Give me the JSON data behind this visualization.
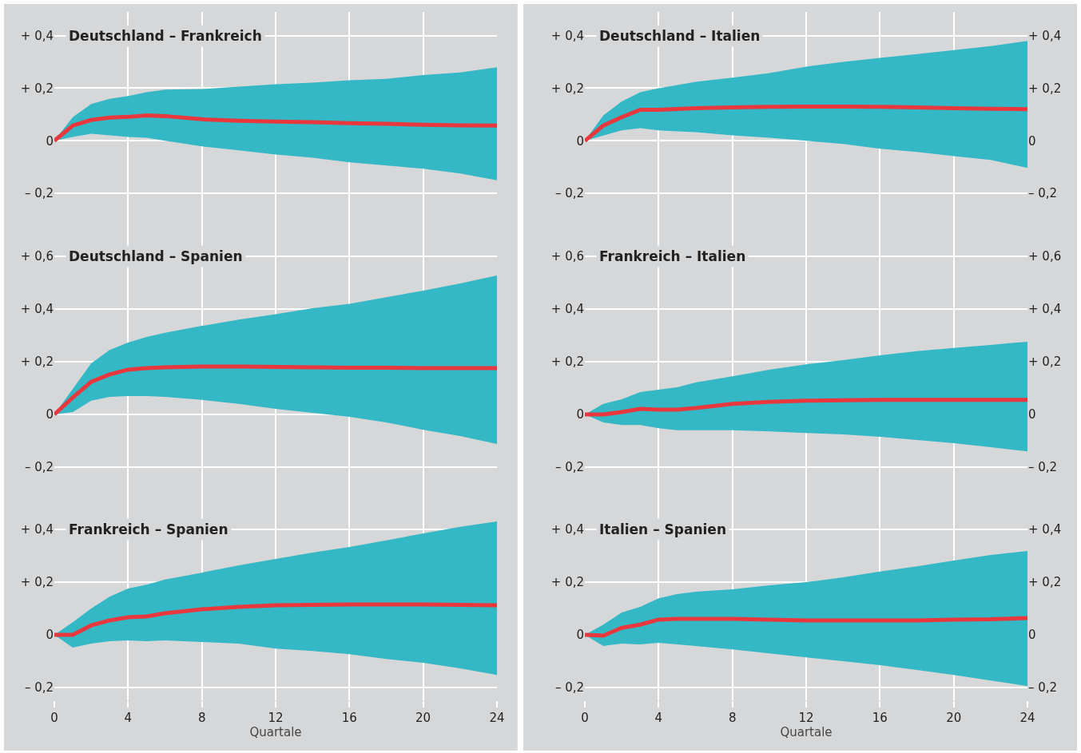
{
  "chart_data": [
    {
      "type": "line",
      "title": "Deutschland – Frankreich",
      "x": [
        0,
        1,
        2,
        3,
        4,
        5,
        6,
        8,
        10,
        12,
        14,
        16,
        18,
        20,
        22,
        24
      ],
      "xlim": [
        0,
        24
      ],
      "xticks": [
        0,
        4,
        8,
        12,
        16,
        20,
        24
      ],
      "ylim": [
        -0.33,
        0.49
      ],
      "yticks": [
        {
          "value": -0.2,
          "label": "– 0,2"
        },
        {
          "value": 0,
          "label": "0"
        },
        {
          "value": 0.2,
          "label": "+ 0,2"
        },
        {
          "value": 0.4,
          "label": "+ 0,4"
        }
      ],
      "grid": true,
      "tick_labels": "y",
      "series": [
        {
          "color": "#e8383d",
          "values": [
            0,
            0.058,
            0.079,
            0.088,
            0.091,
            0.097,
            0.094,
            0.082,
            0.076,
            0.073,
            0.071,
            0.067,
            0.065,
            0.061,
            0.059,
            0.058
          ],
          "upper": [
            0,
            0.09,
            0.14,
            0.16,
            0.17,
            0.185,
            0.195,
            0.197,
            0.206,
            0.215,
            0.221,
            0.23,
            0.236,
            0.25,
            0.26,
            0.28
          ],
          "lower": [
            0,
            0.015,
            0.027,
            0.021,
            0.015,
            0.012,
            0,
            -0.021,
            -0.036,
            -0.052,
            -0.064,
            -0.082,
            -0.094,
            -0.106,
            -0.124,
            -0.15
          ]
        }
      ]
    },
    {
      "type": "line",
      "title": "Deutschland – Italien",
      "x": [
        0,
        1,
        2,
        3,
        4,
        5,
        6,
        8,
        10,
        12,
        14,
        16,
        18,
        20,
        22,
        24
      ],
      "xlim": [
        0,
        24
      ],
      "xticks": [
        0,
        4,
        8,
        12,
        16,
        20,
        24
      ],
      "ylim": [
        -0.33,
        0.49
      ],
      "yticks": [
        {
          "value": -0.2,
          "label": "– 0,2"
        },
        {
          "value": 0,
          "label": "0"
        },
        {
          "value": 0.2,
          "label": "+ 0,2"
        },
        {
          "value": 0.4,
          "label": "+ 0,4"
        }
      ],
      "y2lim": [
        -0.33,
        0.49
      ],
      "y2ticks": [
        {
          "value": -0.2,
          "label": "– 0,2"
        },
        {
          "value": 0,
          "label": "0"
        },
        {
          "value": 0.2,
          "label": "+ 0,2"
        },
        {
          "value": 0.4,
          "label": "+ 0,4"
        }
      ],
      "grid": true,
      "tick_labels": "y",
      "series": [
        {
          "color": "#e8383d",
          "values": [
            0,
            0.058,
            0.09,
            0.118,
            0.118,
            0.121,
            0.124,
            0.127,
            0.129,
            0.13,
            0.13,
            0.129,
            0.127,
            0.124,
            0.122,
            0.12
          ],
          "upper": [
            0,
            0.097,
            0.15,
            0.185,
            0.2,
            0.212,
            0.224,
            0.24,
            0.258,
            0.282,
            0.3,
            0.315,
            0.33,
            0.345,
            0.36,
            0.38
          ],
          "lower": [
            0,
            0.02,
            0.04,
            0.048,
            0.04,
            0.036,
            0.033,
            0.021,
            0.012,
            0,
            -0.012,
            -0.03,
            -0.042,
            -0.058,
            -0.073,
            -0.103
          ]
        }
      ]
    },
    {
      "type": "line",
      "title": "Deutschland – Spanien",
      "x": [
        0,
        1,
        2,
        3,
        4,
        5,
        6,
        8,
        10,
        12,
        14,
        16,
        18,
        20,
        22,
        24
      ],
      "xlim": [
        0,
        24
      ],
      "xticks": [
        0,
        4,
        8,
        12,
        16,
        20,
        24
      ],
      "ylim": [
        -0.306,
        0.709
      ],
      "yticks": [
        {
          "value": -0.2,
          "label": "– 0,2"
        },
        {
          "value": 0,
          "label": "0"
        },
        {
          "value": 0.2,
          "label": "+ 0,2"
        },
        {
          "value": 0.4,
          "label": "+ 0,4"
        },
        {
          "value": 0.6,
          "label": "+ 0,6"
        }
      ],
      "grid": true,
      "tick_labels": "y",
      "series": [
        {
          "color": "#e8383d",
          "values": [
            0,
            0.064,
            0.124,
            0.152,
            0.17,
            0.176,
            0.179,
            0.182,
            0.182,
            0.18,
            0.179,
            0.177,
            0.177,
            0.176,
            0.176,
            0.176
          ],
          "upper": [
            0,
            0.097,
            0.194,
            0.245,
            0.273,
            0.294,
            0.31,
            0.336,
            0.36,
            0.38,
            0.403,
            0.42,
            0.445,
            0.47,
            0.497,
            0.527
          ],
          "lower": [
            0,
            0.009,
            0.052,
            0.067,
            0.07,
            0.07,
            0.067,
            0.055,
            0.04,
            0.021,
            0.006,
            -0.009,
            -0.03,
            -0.058,
            -0.082,
            -0.112
          ]
        }
      ]
    },
    {
      "type": "line",
      "title": "Frankreich – Italien",
      "x": [
        0,
        1,
        2,
        3,
        4,
        5,
        6,
        8,
        10,
        12,
        14,
        16,
        18,
        20,
        22,
        24
      ],
      "xlim": [
        0,
        24
      ],
      "xticks": [
        0,
        4,
        8,
        12,
        16,
        20,
        24
      ],
      "ylim": [
        -0.306,
        0.709
      ],
      "yticks": [
        {
          "value": -0.2,
          "label": "– 0,2"
        },
        {
          "value": 0,
          "label": "0"
        },
        {
          "value": 0.2,
          "label": "+ 0,2"
        },
        {
          "value": 0.4,
          "label": "+ 0,4"
        },
        {
          "value": 0.6,
          "label": "+ 0,6"
        }
      ],
      "y2lim": [
        -0.306,
        0.709
      ],
      "y2ticks": [
        {
          "value": -0.2,
          "label": "– 0,2"
        },
        {
          "value": 0,
          "label": "0"
        },
        {
          "value": 0.2,
          "label": "+ 0,2"
        },
        {
          "value": 0.4,
          "label": "+ 0,4"
        },
        {
          "value": 0.6,
          "label": "+ 0,6"
        }
      ],
      "grid": true,
      "tick_labels": "y",
      "series": [
        {
          "color": "#e8383d",
          "values": [
            0,
            0,
            0.009,
            0.021,
            0.018,
            0.018,
            0.024,
            0.04,
            0.048,
            0.052,
            0.054,
            0.055,
            0.055,
            0.055,
            0.055,
            0.055
          ],
          "upper": [
            0,
            0.04,
            0.058,
            0.085,
            0.094,
            0.103,
            0.121,
            0.145,
            0.17,
            0.19,
            0.206,
            0.224,
            0.24,
            0.252,
            0.264,
            0.276
          ],
          "lower": [
            0,
            -0.03,
            -0.04,
            -0.04,
            -0.052,
            -0.06,
            -0.06,
            -0.06,
            -0.064,
            -0.07,
            -0.076,
            -0.085,
            -0.097,
            -0.109,
            -0.124,
            -0.14
          ]
        }
      ]
    },
    {
      "type": "line",
      "title": "Frankreich – Spanien",
      "x": [
        0,
        1,
        2,
        3,
        4,
        5,
        6,
        8,
        10,
        12,
        14,
        16,
        18,
        20,
        22,
        24
      ],
      "xlim": [
        0,
        24
      ],
      "xticks": [
        0,
        4,
        8,
        12,
        16,
        20,
        24
      ],
      "ylim": [
        -0.248,
        0.53
      ],
      "yticks": [
        {
          "value": -0.2,
          "label": "– 0,2"
        },
        {
          "value": 0,
          "label": "0"
        },
        {
          "value": 0.2,
          "label": "+ 0,2"
        },
        {
          "value": 0.4,
          "label": "+ 0,4"
        }
      ],
      "xlabel": "Quartale",
      "grid": true,
      "series": [
        {
          "color": "#e8383d",
          "values": [
            0,
            0,
            0.036,
            0.055,
            0.067,
            0.07,
            0.082,
            0.097,
            0.106,
            0.112,
            0.114,
            0.115,
            0.115,
            0.115,
            0.114,
            0.112
          ],
          "upper": [
            0,
            0.048,
            0.1,
            0.145,
            0.176,
            0.19,
            0.21,
            0.236,
            0.264,
            0.288,
            0.312,
            0.333,
            0.358,
            0.385,
            0.41,
            0.43
          ],
          "lower": [
            0,
            -0.048,
            -0.033,
            -0.024,
            -0.021,
            -0.024,
            -0.021,
            -0.027,
            -0.033,
            -0.052,
            -0.061,
            -0.073,
            -0.091,
            -0.106,
            -0.127,
            -0.152
          ]
        }
      ]
    },
    {
      "type": "line",
      "title": "Italien – Spanien",
      "x": [
        0,
        1,
        2,
        3,
        4,
        5,
        6,
        8,
        10,
        12,
        14,
        16,
        18,
        20,
        22,
        24
      ],
      "xlim": [
        0,
        24
      ],
      "xticks": [
        0,
        4,
        8,
        12,
        16,
        20,
        24
      ],
      "ylim": [
        -0.248,
        0.53
      ],
      "yticks": [
        {
          "value": -0.2,
          "label": "– 0,2"
        },
        {
          "value": 0,
          "label": "0"
        },
        {
          "value": 0.2,
          "label": "+ 0,2"
        },
        {
          "value": 0.4,
          "label": "+ 0,4"
        }
      ],
      "y2lim": [
        -0.248,
        0.53
      ],
      "y2ticks": [
        {
          "value": -0.2,
          "label": "– 0,2"
        },
        {
          "value": 0,
          "label": "0"
        },
        {
          "value": 0.2,
          "label": "+ 0,2"
        },
        {
          "value": 0.4,
          "label": "+ 0,4"
        }
      ],
      "xlabel": "Quartale",
      "grid": true,
      "series": [
        {
          "color": "#e8383d",
          "values": [
            0,
            -0.003,
            0.027,
            0.039,
            0.058,
            0.061,
            0.061,
            0.061,
            0.058,
            0.055,
            0.055,
            0.055,
            0.055,
            0.058,
            0.059,
            0.064
          ],
          "upper": [
            0,
            0.039,
            0.085,
            0.106,
            0.139,
            0.155,
            0.164,
            0.173,
            0.188,
            0.2,
            0.218,
            0.24,
            0.26,
            0.282,
            0.303,
            0.318
          ],
          "lower": [
            0,
            -0.042,
            -0.033,
            -0.036,
            -0.03,
            -0.036,
            -0.042,
            -0.055,
            -0.07,
            -0.085,
            -0.1,
            -0.115,
            -0.133,
            -0.152,
            -0.173,
            -0.194
          ]
        }
      ]
    }
  ]
}
